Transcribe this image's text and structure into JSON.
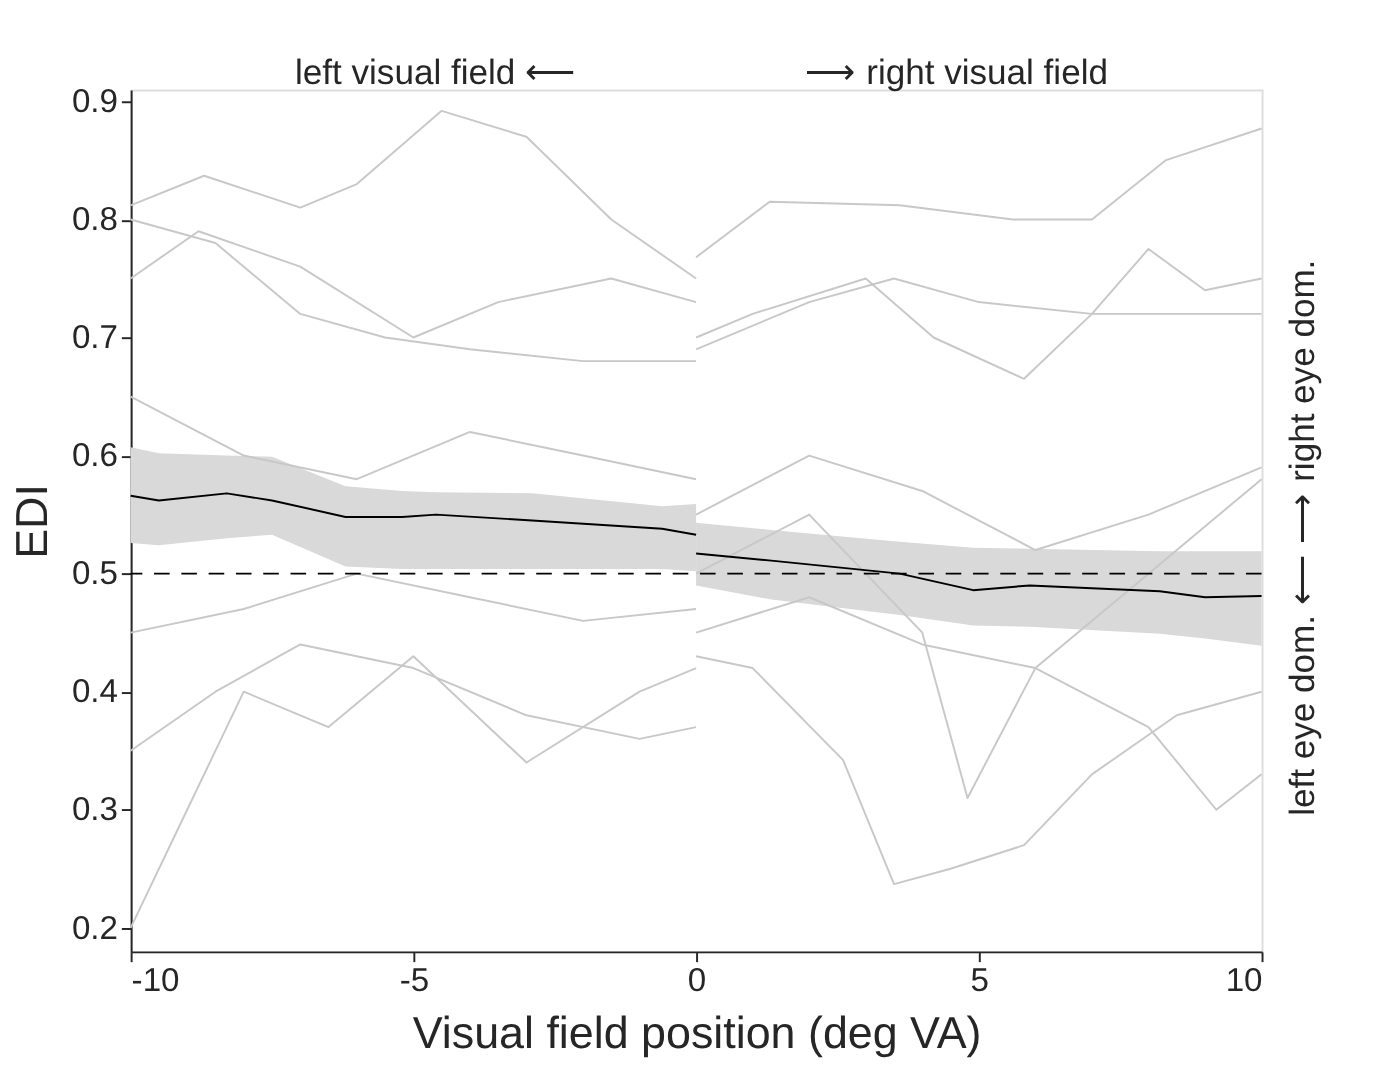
{
  "chart_data": {
    "type": "line",
    "xlabel": "Visual field position (deg VA)",
    "ylabel": "EDI",
    "xlim": [
      -10,
      10
    ],
    "ylim": [
      0.18,
      0.91
    ],
    "xticks": [
      -10,
      -5,
      0,
      5,
      10
    ],
    "yticks": [
      0.2,
      0.3,
      0.4,
      0.5,
      0.6,
      0.7,
      0.8,
      0.9
    ],
    "grid": false,
    "legend": false,
    "line_style": "solid",
    "marker": "none",
    "annotations": [
      "left visual field ⟵",
      "⟶ right visual field",
      "left eye dom. ⟵   ⟶ right eye dom."
    ],
    "ref_lines": [
      {
        "axis": "y",
        "value": 0.5,
        "color": "#000000",
        "line_style": "dashed"
      }
    ],
    "series": [
      {
        "color": "#c8c8c8",
        "x": [
          -10,
          -8.7,
          -7,
          -6,
          -4.5,
          -3,
          -1.5,
          0
        ],
        "values": [
          0.812,
          0.837,
          0.81,
          0.83,
          0.892,
          0.87,
          0.8,
          0.75
        ]
      },
      {
        "color": "#c8c8c8",
        "x": [
          -10,
          -9,
          -8,
          -7,
          -6.5,
          -5,
          -3,
          -1,
          0
        ],
        "values": [
          0.2,
          0.3,
          0.4,
          0.38,
          0.37,
          0.43,
          0.34,
          0.4,
          0.42
        ]
      },
      {
        "color": "#c8c8c8",
        "x": [
          -10,
          -8.5,
          -7,
          -5.5,
          -4,
          -2,
          0
        ],
        "values": [
          0.8,
          0.78,
          0.72,
          0.7,
          0.69,
          0.68,
          0.68
        ]
      },
      {
        "color": "#c8c8c8",
        "x": [
          -10,
          -8.8,
          -7,
          -5,
          -3.5,
          -1.5,
          0
        ],
        "values": [
          0.75,
          0.79,
          0.76,
          0.7,
          0.73,
          0.75,
          0.73
        ]
      },
      {
        "color": "#c8c8c8",
        "x": [
          -10,
          -8.5,
          -7,
          -5,
          -3,
          -1,
          0
        ],
        "values": [
          0.35,
          0.4,
          0.44,
          0.42,
          0.38,
          0.36,
          0.37
        ]
      },
      {
        "color": "#c8c8c8",
        "x": [
          -10,
          -8,
          -6,
          -4,
          -2,
          0
        ],
        "values": [
          0.45,
          0.47,
          0.5,
          0.48,
          0.46,
          0.47
        ]
      },
      {
        "color": "#c8c8c8",
        "x": [
          -10,
          -8,
          -6,
          -4,
          -2,
          0
        ],
        "values": [
          0.65,
          0.6,
          0.58,
          0.62,
          0.6,
          0.58
        ]
      },
      {
        "color": "#c8c8c8",
        "x": [
          0,
          1.3,
          3.6,
          5.6,
          7,
          8.3,
          10
        ],
        "values": [
          0.768,
          0.815,
          0.812,
          0.8,
          0.8,
          0.85,
          0.877
        ]
      },
      {
        "color": "#c8c8c8",
        "x": [
          0,
          1,
          3,
          4.2,
          5.8,
          7,
          8,
          9,
          10
        ],
        "values": [
          0.7,
          0.72,
          0.75,
          0.7,
          0.665,
          0.72,
          0.775,
          0.74,
          0.75
        ]
      },
      {
        "color": "#c8c8c8",
        "x": [
          0,
          2,
          3.5,
          5,
          7,
          10
        ],
        "values": [
          0.69,
          0.73,
          0.75,
          0.73,
          0.72,
          0.72
        ]
      },
      {
        "color": "#c8c8c8",
        "x": [
          0,
          1,
          2.6,
          3.5,
          4.5,
          5.8,
          7,
          8.5,
          10
        ],
        "values": [
          0.43,
          0.42,
          0.342,
          0.237,
          0.25,
          0.27,
          0.33,
          0.38,
          0.4
        ]
      },
      {
        "color": "#c8c8c8",
        "x": [
          0,
          2,
          4,
          4.8,
          6,
          8,
          10
        ],
        "values": [
          0.5,
          0.55,
          0.45,
          0.31,
          0.42,
          0.5,
          0.58
        ]
      },
      {
        "color": "#c8c8c8",
        "x": [
          0,
          2,
          4,
          6,
          8,
          9.2,
          10
        ],
        "values": [
          0.45,
          0.48,
          0.44,
          0.42,
          0.37,
          0.3,
          0.33
        ]
      },
      {
        "color": "#c8c8c8",
        "x": [
          0,
          2,
          4,
          6,
          8,
          10
        ],
        "values": [
          0.55,
          0.6,
          0.57,
          0.52,
          0.55,
          0.59
        ]
      },
      {
        "color": "#000000",
        "x": [
          -10,
          -9.5,
          -8.3,
          -7.5,
          -6.2,
          -5.2,
          -4.6,
          -2.9,
          -0.6,
          0
        ],
        "values": [
          0.566,
          0.562,
          0.568,
          0.562,
          0.548,
          0.548,
          0.55,
          0.545,
          0.538,
          0.533
        ],
        "upper": [
          0.607,
          0.602,
          0.6,
          0.599,
          0.574,
          0.57,
          0.569,
          0.568,
          0.557,
          0.559
        ],
        "lower": [
          0.526,
          0.524,
          0.53,
          0.533,
          0.506,
          0.504,
          0.504,
          0.504,
          0.504,
          0.502
        ]
      },
      {
        "color": "#000000",
        "x": [
          0,
          1.33,
          3.6,
          4.9,
          5.9,
          8.2,
          9,
          10
        ],
        "values": [
          0.517,
          0.511,
          0.5,
          0.486,
          0.49,
          0.485,
          0.48,
          0.481
        ],
        "upper": [
          0.543,
          0.537,
          0.527,
          0.522,
          0.521,
          0.519,
          0.519,
          0.519
        ],
        "lower": [
          0.49,
          0.478,
          0.465,
          0.456,
          0.455,
          0.449,
          0.445,
          0.439
        ]
      }
    ]
  }
}
